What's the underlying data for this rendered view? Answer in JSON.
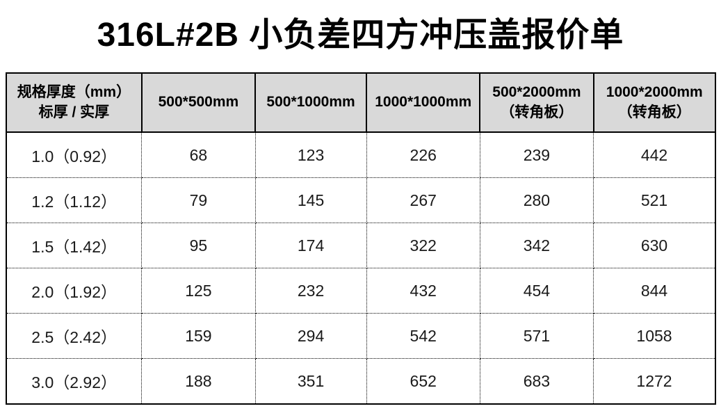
{
  "title": "316L#2B 小负差四方冲压盖报价单",
  "colors": {
    "header_bg": "#d9d9d9",
    "border": "#000000",
    "text": "#1a1a1a"
  },
  "table": {
    "header": {
      "spec_line1": "规格厚度（mm）",
      "spec_line2": "标厚 / 实厚",
      "columns": [
        {
          "label": "500*500mm",
          "sub": ""
        },
        {
          "label": "500*1000mm",
          "sub": ""
        },
        {
          "label": "1000*1000mm",
          "sub": ""
        },
        {
          "label": "500*2000mm",
          "sub": "（转角板）"
        },
        {
          "label": "1000*2000mm",
          "sub": "（转角板）"
        }
      ]
    },
    "rows": [
      {
        "spec": "1.0（0.92）",
        "values": [
          "68",
          "123",
          "226",
          "239",
          "442"
        ]
      },
      {
        "spec": "1.2（1.12）",
        "values": [
          "79",
          "145",
          "267",
          "280",
          "521"
        ]
      },
      {
        "spec": "1.5（1.42）",
        "values": [
          "95",
          "174",
          "322",
          "342",
          "630"
        ]
      },
      {
        "spec": "2.0（1.92）",
        "values": [
          "125",
          "232",
          "432",
          "454",
          "844"
        ]
      },
      {
        "spec": "2.5（2.42）",
        "values": [
          "159",
          "294",
          "542",
          "571",
          "1058"
        ]
      },
      {
        "spec": "3.0（2.92）",
        "values": [
          "188",
          "351",
          "652",
          "683",
          "1272"
        ]
      }
    ]
  }
}
